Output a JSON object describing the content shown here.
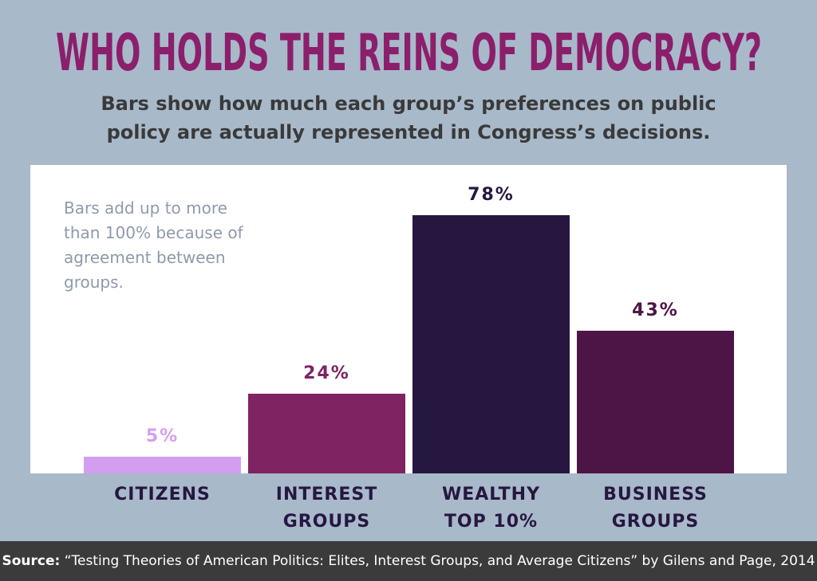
{
  "chart_data": {
    "type": "bar",
    "title": "WHO HOLDS THE REINS OF DEMOCRACY?",
    "subtitle": "Bars show how much each group’s preferences on public policy are actually represented in Congress’s decisions.",
    "annotation": "Bars add up to more than 100% because of agreement between groups.",
    "categories": [
      "CITIZENS",
      "INTEREST GROUPS",
      "WEALTHY TOP 10%",
      "BUSINESS GROUPS"
    ],
    "values": [
      5,
      24,
      78,
      43
    ],
    "value_labels": [
      "5%",
      "24%",
      "78%",
      "43%"
    ],
    "colors": [
      "#d39ef0",
      "#7f2363",
      "#261740",
      "#4d1545"
    ],
    "label_colors": [
      "#d39ef0",
      "#7f2363",
      "#261740",
      "#4d1545"
    ]
  },
  "footer": {
    "label": "Source:",
    "text": "“Testing Theories of American Politics: Elites, Interest Groups, and Average Citizens” by Gilens and Page, 2014"
  }
}
